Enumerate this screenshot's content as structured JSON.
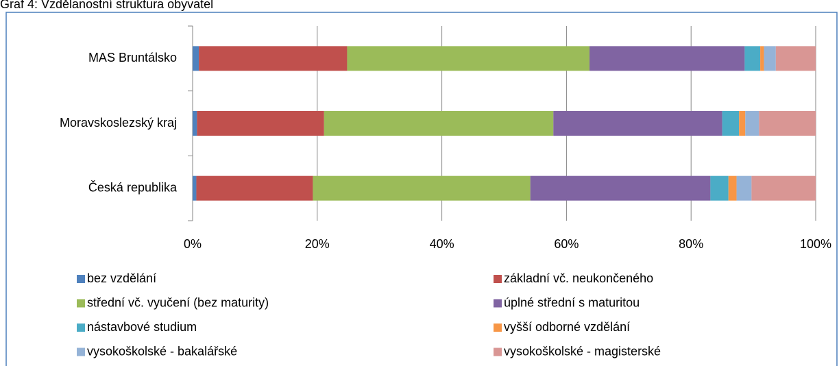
{
  "chart_data": {
    "type": "bar",
    "orientation": "horizontal",
    "stacked": true,
    "title": "Graf 4: Vzdělanostní struktura obyvatel",
    "categories": [
      "MAS Bruntálsko",
      "Moravskoslezský kraj",
      "Česká republika"
    ],
    "xlim": [
      0,
      100
    ],
    "xticks": [
      {
        "value": 0,
        "label": "0%"
      },
      {
        "value": 20,
        "label": "20%"
      },
      {
        "value": 40,
        "label": "40%"
      },
      {
        "value": 60,
        "label": "60%"
      },
      {
        "value": 80,
        "label": "80%"
      },
      {
        "value": 100,
        "label": "100%"
      }
    ],
    "grid": true,
    "legend": "bottom",
    "series": [
      {
        "name": "bez vzdělání",
        "color": "#4f81bd",
        "values": [
          1.0,
          0.7,
          0.6
        ]
      },
      {
        "name": "základní vč. neukončeného",
        "color": "#c0504d",
        "values": [
          23.8,
          20.4,
          18.7
        ]
      },
      {
        "name": "střední vč. vyučení (bez maturity)",
        "color": "#9bbb59",
        "values": [
          38.9,
          36.8,
          34.9
        ]
      },
      {
        "name": "úplné střední s maturitou",
        "color": "#8064a2",
        "values": [
          24.9,
          27.1,
          28.9
        ]
      },
      {
        "name": "nástavbové studium",
        "color": "#4bacc6",
        "values": [
          2.5,
          2.7,
          2.9
        ]
      },
      {
        "name": "vyšší odborné vzdělání",
        "color": "#f79646",
        "values": [
          0.6,
          1.0,
          1.3
        ]
      },
      {
        "name": "vysokoškolské - bakalářské",
        "color": "#95b3d7",
        "values": [
          1.9,
          2.2,
          2.4
        ]
      },
      {
        "name": "vysokoškolské - magisterské",
        "color": "#d99694",
        "values": [
          6.4,
          9.1,
          10.3
        ]
      }
    ]
  }
}
